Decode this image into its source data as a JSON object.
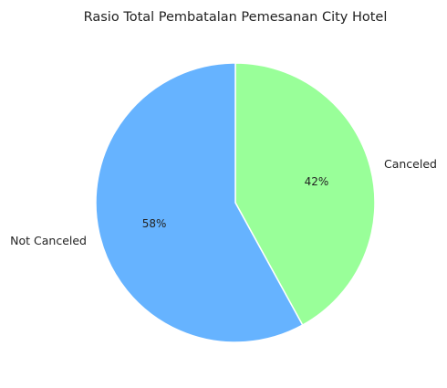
{
  "chart_data": {
    "type": "pie",
    "title": "Rasio Total Pembatalan Pemesanan City Hotel",
    "slices": [
      {
        "label": "Canceled",
        "value": 42,
        "pct_label": "42%",
        "color": "#99ff99"
      },
      {
        "label": "Not Canceled",
        "value": 58,
        "pct_label": "58%",
        "color": "#66b3ff"
      }
    ],
    "start_angle_deg": 90,
    "direction": "clockwise",
    "edge_color": "#ffffff"
  }
}
